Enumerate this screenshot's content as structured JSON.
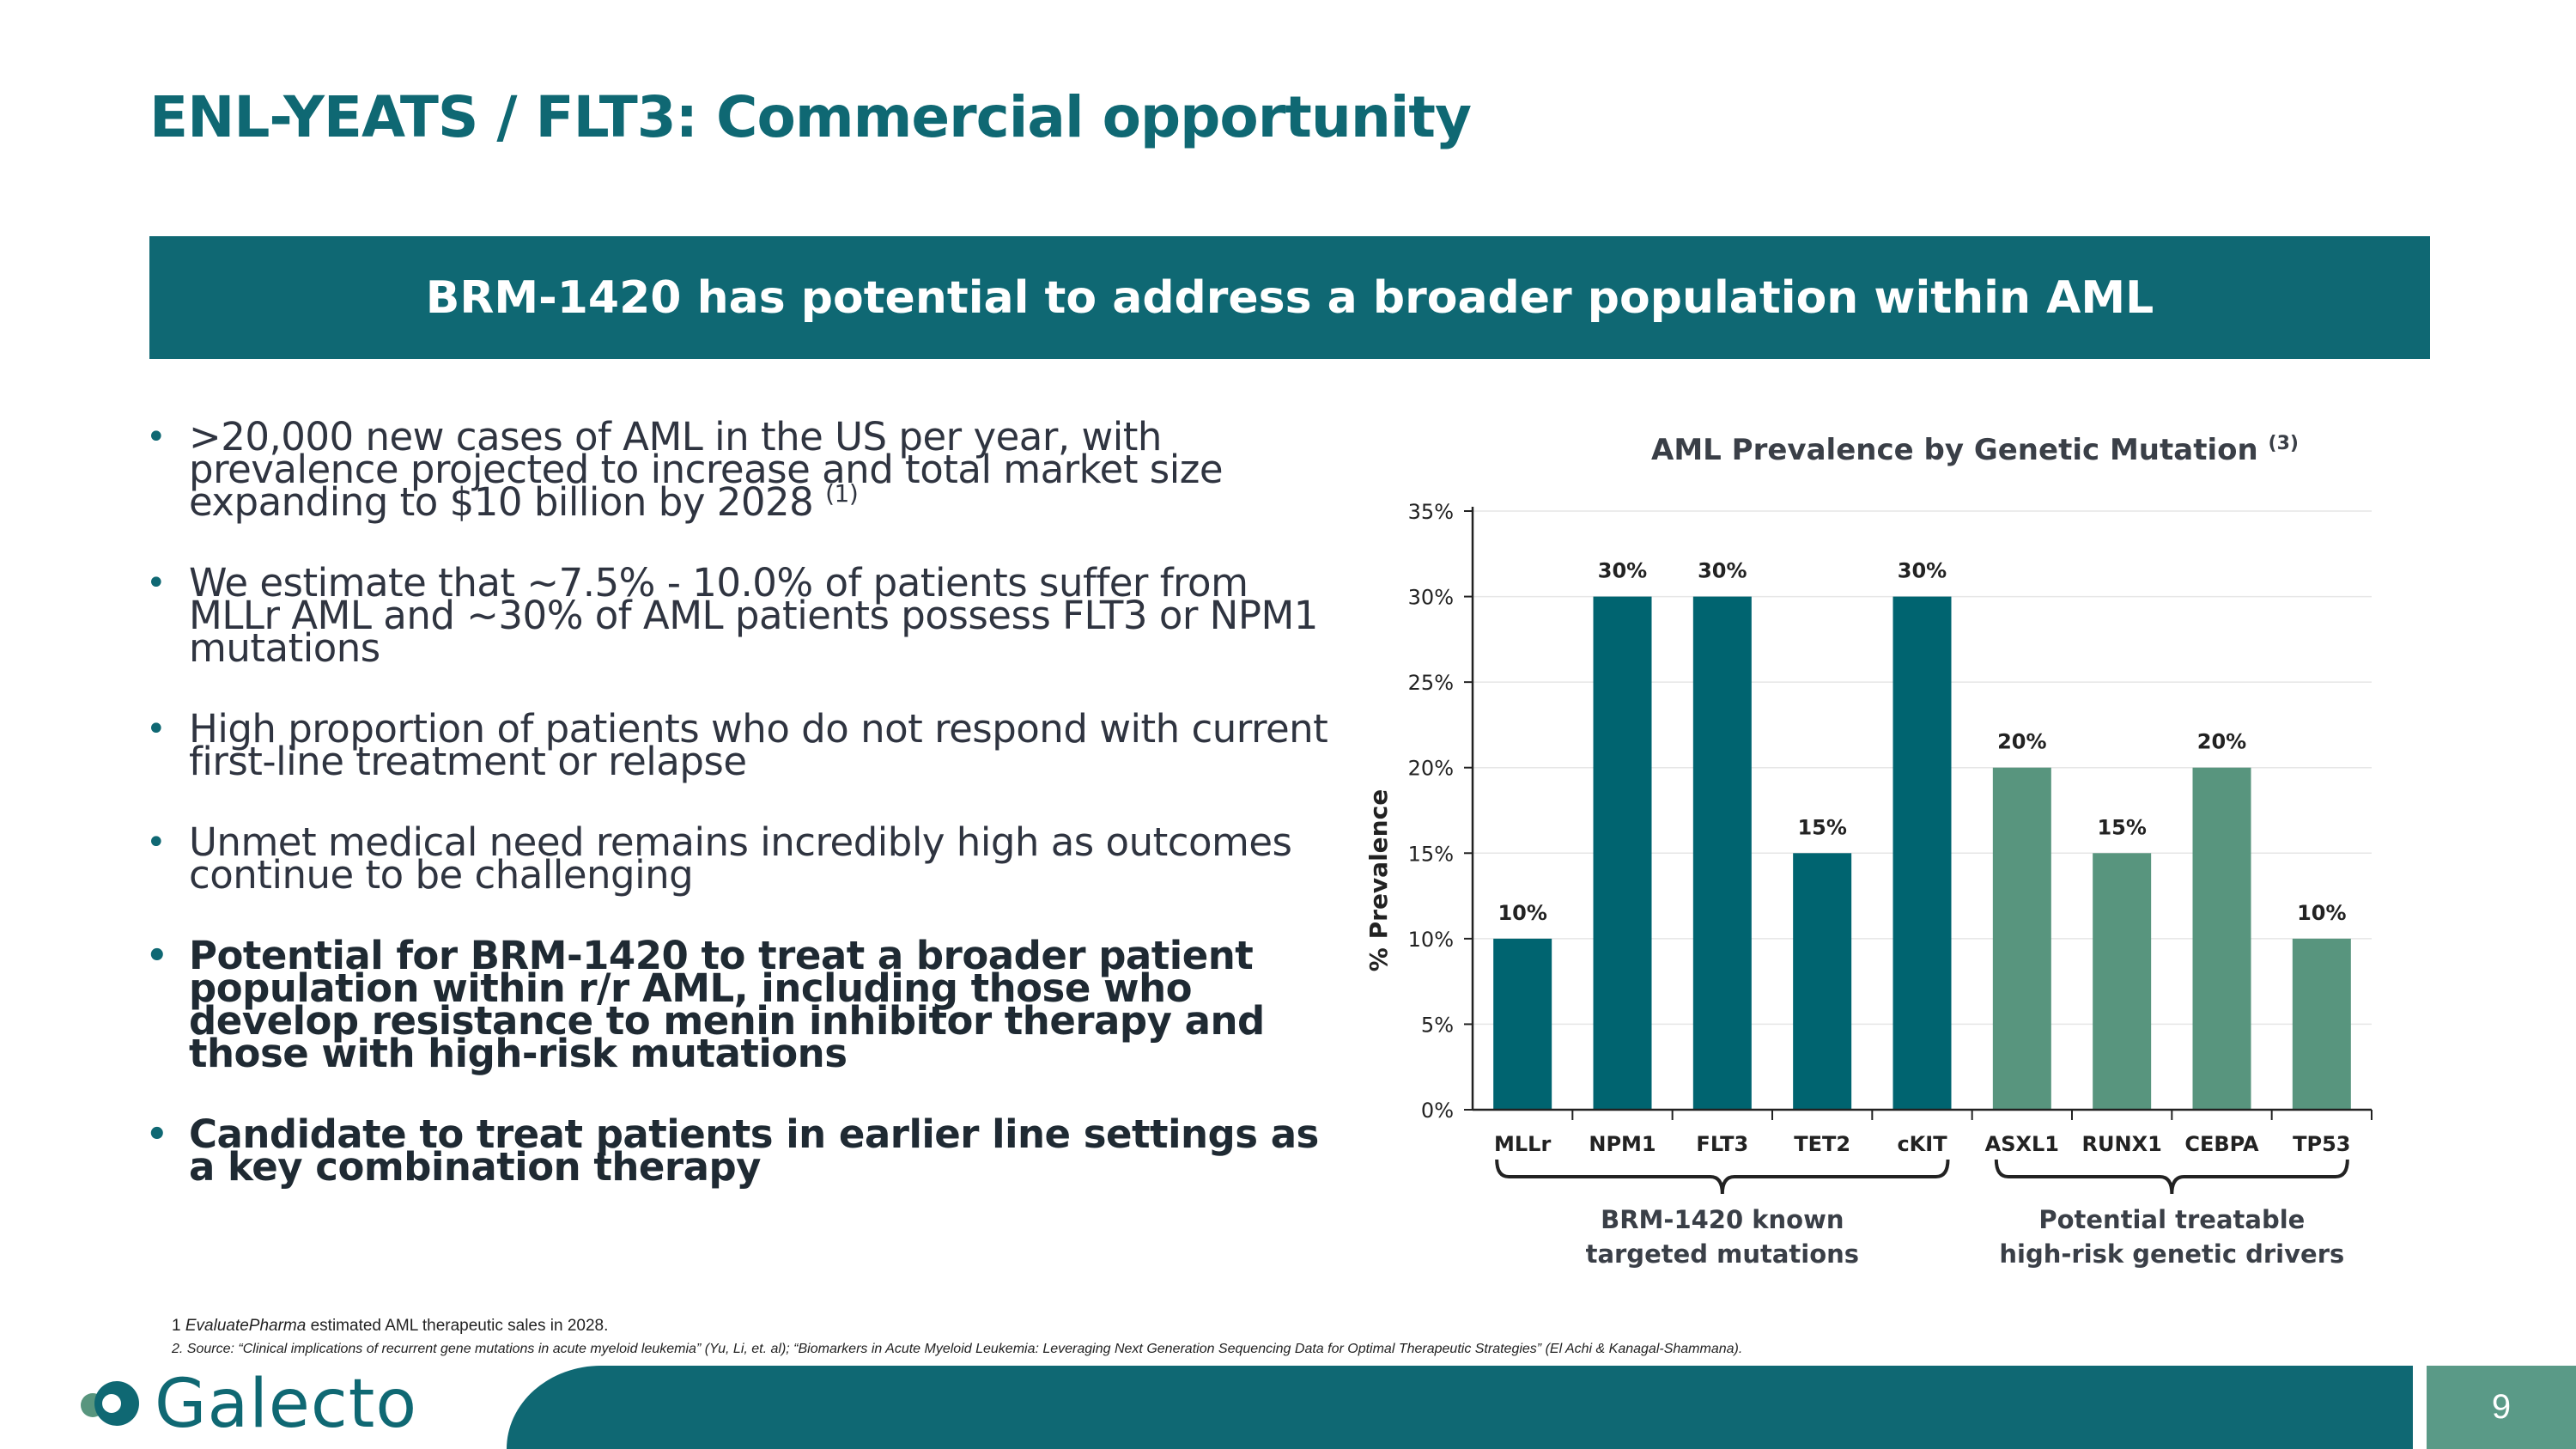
{
  "header": {
    "title": "ENL-YEATS / FLT3:  Commercial opportunity"
  },
  "banner": {
    "text": "BRM-1420 has potential to address a broader population within AML"
  },
  "bullets": [
    {
      "text": ">20,000 new cases of AML in the US per year, with prevalence projected to increase and total market size expanding to $10 billion by 2028",
      "sup": "(1)",
      "bold": false
    },
    {
      "text": "We estimate that ~7.5% - 10.0% of patients suffer from MLLr AML and ~30% of AML patients possess FLT3 or NPM1 mutations",
      "bold": false
    },
    {
      "text": "High proportion of patients who do not respond with current first-line treatment or relapse",
      "bold": false
    },
    {
      "text": "Unmet medical need remains incredibly high as outcomes continue to be challenging",
      "bold": false
    },
    {
      "text": "Potential for BRM-1420 to treat a broader patient population within r/r AML, including those who develop resistance to menin inhibitor therapy and those with high-risk mutations",
      "bold": true
    },
    {
      "text": "Candidate to treat patients in earlier line settings as a key combination therapy",
      "bold": true
    }
  ],
  "chart_data": {
    "type": "bar",
    "title": "AML Prevalence by Genetic Mutation",
    "title_sup": "(3)",
    "ylabel": "% Prevalence",
    "xlabel": "",
    "ylim": [
      0,
      35
    ],
    "yticks": [
      "0%",
      "5%",
      "10%",
      "15%",
      "20%",
      "25%",
      "30%",
      "35%"
    ],
    "categories": [
      "MLLr",
      "NPM1",
      "FLT3",
      "TET2",
      "cKIT",
      "ASXL1",
      "RUNX1",
      "CEBPA",
      "TP53"
    ],
    "values": [
      10,
      30,
      30,
      15,
      30,
      20,
      15,
      20,
      10
    ],
    "data_labels": [
      "10%",
      "30%",
      "30%",
      "15%",
      "30%",
      "20%",
      "15%",
      "20%",
      "10%"
    ],
    "groups": [
      {
        "label_line1": "BRM-1420 known",
        "label_line2": "targeted mutations",
        "start": 0,
        "end": 4,
        "color": "#006470"
      },
      {
        "label_line1": "Potential treatable",
        "label_line2": "high-risk genetic drivers",
        "start": 5,
        "end": 8,
        "color": "#58957e"
      }
    ]
  },
  "footnotes": {
    "note1_num": "1",
    "note1_italic": "EvaluatePharma",
    "note1_rest": " estimated AML therapeutic sales in 2028.",
    "note2": "2. Source: “Clinical implications of recurrent gene mutations in acute myeloid leukemia” (Yu, Li, et. al); “Biomarkers in Acute Myeloid Leukemia: Leveraging Next Generation Sequencing Data for Optimal Therapeutic Strategies” (El Achi & Kanagal-Shammana)."
  },
  "footer": {
    "logo_text": "Galecto",
    "page_number": "9"
  },
  "colors": {
    "brand_teal": "#0f6873",
    "group2_green": "#58957e",
    "page_box": "#5a9a87"
  }
}
